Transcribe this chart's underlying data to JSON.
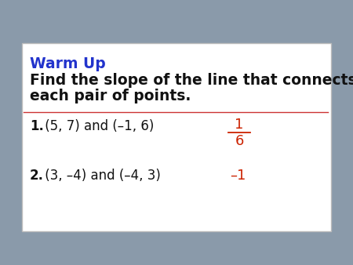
{
  "background_color": "#8a9aaa",
  "card_color": "#ffffff",
  "card_border_color": "#bbbbbb",
  "title_text": "Warm Up",
  "title_color": "#2233cc",
  "subtitle_line1": "Find the slope of the line that connects",
  "subtitle_line2": "each pair of points.",
  "subtitle_color": "#111111",
  "divider_color": "#cc3333",
  "q1_label": "1.",
  "q1_text": " (5, 7) and (–1, 6)",
  "q1_answer_num": "1",
  "q1_answer_den": "6",
  "q1_answer_color": "#cc2200",
  "q2_label": "2.",
  "q2_text": " (3, –4) and (–4, 3)",
  "q2_answer": "–1",
  "q2_answer_color": "#cc2200",
  "label_color": "#111111",
  "text_color": "#111111",
  "fig_width": 4.5,
  "fig_height": 3.38,
  "dpi": 100
}
